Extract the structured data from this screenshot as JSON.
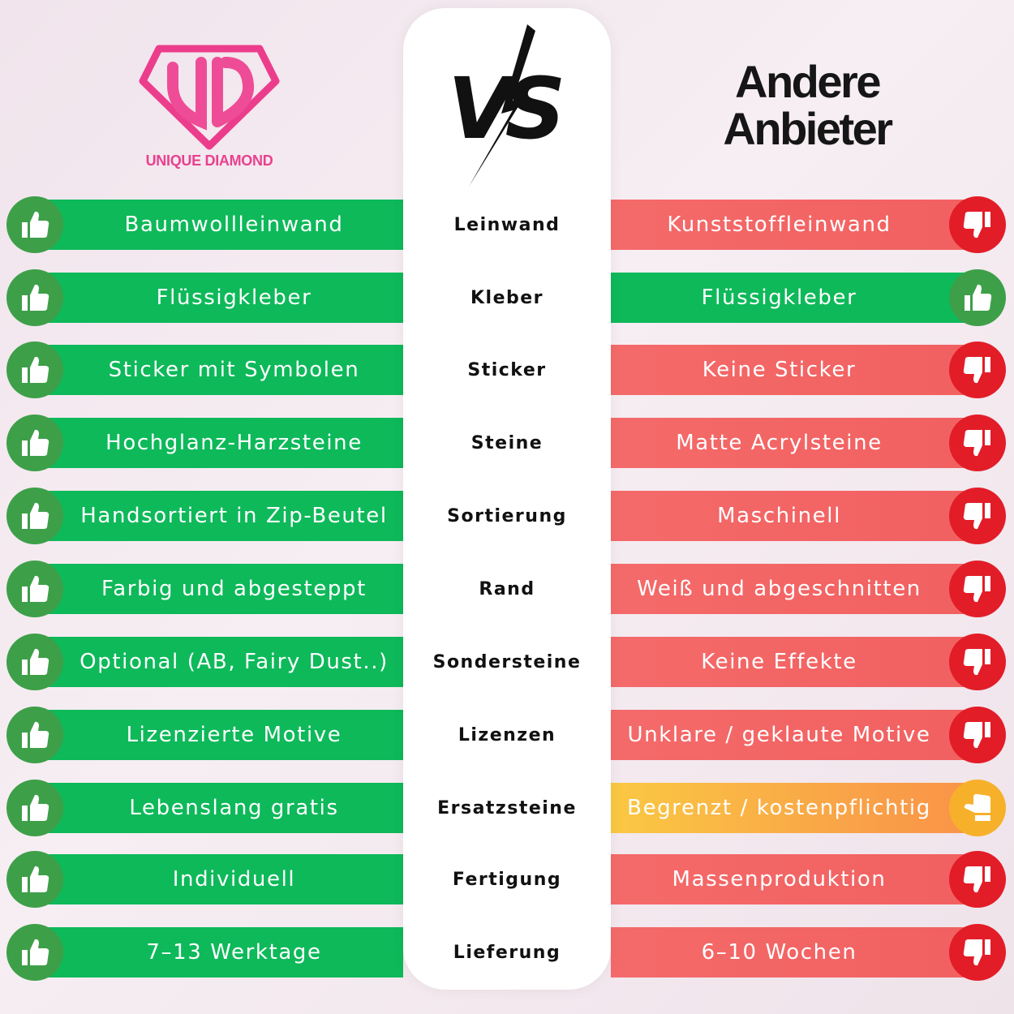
{
  "brand": {
    "name": "UNIQUE DIAMOND",
    "logo_letters": "UD",
    "color": "#e8418f"
  },
  "vs_logo": "VS",
  "competitor_title": [
    "Andere",
    "Anbieter"
  ],
  "colors": {
    "good": "#0eb95a",
    "bad": "#f26262",
    "neutral": "#f7b02a"
  },
  "rows": [
    {
      "category": "Leinwand",
      "ours": "Baumwollleinwand",
      "theirs": "Kunststoffleinwand",
      "theirs_rating": "bad",
      "icon": "thumbs-down-icon"
    },
    {
      "category": "Kleber",
      "ours": "Flüssigkleber",
      "theirs": "Flüssigkleber",
      "theirs_rating": "good",
      "icon": "thumbs-up-icon"
    },
    {
      "category": "Sticker",
      "ours": "Sticker mit Symbolen",
      "theirs": "Keine Sticker",
      "theirs_rating": "bad",
      "icon": "thumbs-down-icon"
    },
    {
      "category": "Steine",
      "ours": "Hochglanz-Harzsteine",
      "theirs": "Matte Acrylsteine",
      "theirs_rating": "bad",
      "icon": "thumbs-down-icon"
    },
    {
      "category": "Sortierung",
      "ours": "Handsortiert in Zip-Beutel",
      "theirs": "Maschinell",
      "theirs_rating": "bad",
      "icon": "thumbs-down-icon"
    },
    {
      "category": "Rand",
      "ours": "Farbig und abgesteppt",
      "theirs": "Weiß und abgeschnitten",
      "theirs_rating": "bad",
      "icon": "thumbs-down-icon"
    },
    {
      "category": "Sondersteine",
      "ours": "Optional (AB, Fairy Dust..)",
      "theirs": "Keine Effekte",
      "theirs_rating": "bad",
      "icon": "thumbs-down-icon"
    },
    {
      "category": "Lizenzen",
      "ours": "Lizenzierte Motive",
      "theirs": "Unklare / geklaute Motive",
      "theirs_rating": "bad",
      "icon": "thumbs-down-icon"
    },
    {
      "category": "Ersatzsteine",
      "ours": "Lebenslang gratis",
      "theirs": "Begrenzt / kostenpflichtig",
      "theirs_rating": "mid",
      "icon": "thumbs-sideways-icon"
    },
    {
      "category": "Fertigung",
      "ours": "Individuell",
      "theirs": "Massenproduktion",
      "theirs_rating": "bad",
      "icon": "thumbs-down-icon"
    },
    {
      "category": "Lieferung",
      "ours": "7–13 Werktage",
      "theirs": "6–10 Wochen",
      "theirs_rating": "bad",
      "icon": "thumbs-down-icon"
    }
  ]
}
